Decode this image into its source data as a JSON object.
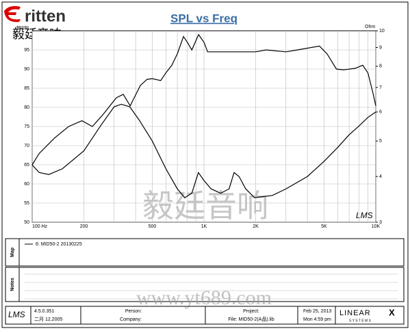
{
  "header": {
    "logo": "ritten",
    "logo_cn": "毅廷音响"
  },
  "chart_data": {
    "type": "line",
    "title": "SPL vs Freq",
    "y_label": "dBSPL",
    "y2_label": "Ohm",
    "xlog": true,
    "y2log": true,
    "grid": true,
    "xlim": [
      100,
      10000
    ],
    "xticks": [
      {
        "value": 100,
        "label": "100 Hz"
      },
      200,
      500,
      {
        "value": 1000,
        "label": "1K"
      },
      {
        "value": 2000,
        "label": "2K"
      },
      {
        "value": 5000,
        "label": "5K"
      },
      {
        "value": 10000,
        "label": "10K"
      }
    ],
    "xminor": [
      300,
      400,
      600,
      700,
      800,
      900,
      3000,
      4000,
      6000,
      7000,
      8000,
      9000
    ],
    "ylim": [
      50,
      100
    ],
    "yticks": [
      50,
      55,
      60,
      65,
      70,
      75,
      80,
      85,
      90,
      95
    ],
    "y2lim": [
      3,
      10
    ],
    "y2ticks": [
      3,
      4,
      5,
      6,
      7,
      8,
      9,
      10
    ],
    "series": [
      {
        "name": "6: MID50-2 20130225",
        "color": "#000000",
        "axis": "y",
        "x": [
          100,
          110,
          135,
          163,
          195,
          224,
          257,
          309,
          339,
          372,
          426,
          466,
          500,
          560,
          600,
          650,
          700,
          760,
          800,
          850,
          930,
          1000,
          1050,
          1300,
          2000,
          2300,
          3000,
          3500,
          4700,
          5200,
          5900,
          6500,
          7600,
          8400,
          9000,
          9600,
          10000
        ],
        "values": [
          65,
          68,
          72,
          75,
          76.5,
          75,
          78,
          82.5,
          83.4,
          80.4,
          85.7,
          87.3,
          87.5,
          87,
          89,
          91,
          94,
          98.5,
          97,
          95,
          99,
          97,
          94.5,
          94.5,
          94.5,
          95,
          94.5,
          95,
          96,
          94,
          90,
          89.8,
          90.2,
          91,
          89,
          84,
          80.4
        ]
      },
      {
        "color": "#000000",
        "axis": "y2",
        "x": [
          100,
          110,
          125,
          150,
          200,
          250,
          300,
          330,
          370,
          420,
          500,
          600,
          700,
          773,
          850,
          928,
          1000,
          1100,
          1250,
          1400,
          1497,
          1600,
          1750,
          1970,
          2500,
          3000,
          4000,
          5000,
          6000,
          7000,
          8000,
          9000,
          10000
        ],
        "values": [
          4.3,
          4.1,
          4.05,
          4.2,
          4.7,
          5.5,
          6.2,
          6.3,
          6.2,
          5.7,
          5.0,
          4.2,
          3.7,
          3.5,
          3.6,
          4.1,
          3.9,
          3.7,
          3.6,
          3.7,
          4.1,
          4.0,
          3.7,
          3.5,
          3.55,
          3.7,
          4.0,
          4.4,
          4.8,
          5.2,
          5.5,
          5.8,
          6.0
        ]
      }
    ],
    "plot_logo": "LMS"
  },
  "map_panel": {
    "label": "Map",
    "entry": "6: MID50-2 20130225"
  },
  "notes_panel": {
    "label": "Notes"
  },
  "watermarks": {
    "cn": "毅廷音响",
    "url": "www.yt689.com"
  },
  "footer": {
    "logo": "LMS",
    "version": "4.5.0.351",
    "build_date": "二月 12,2005",
    "person": "Person:",
    "company": "Company:",
    "project": "Project:",
    "file": "File: MID50-2(A品).lib",
    "date": "Feb 25, 2013",
    "time": "Mon 4:59 pm",
    "brand": "LINEAR",
    "brand_x": "X",
    "brand_sub": "S Y S T E M S"
  }
}
